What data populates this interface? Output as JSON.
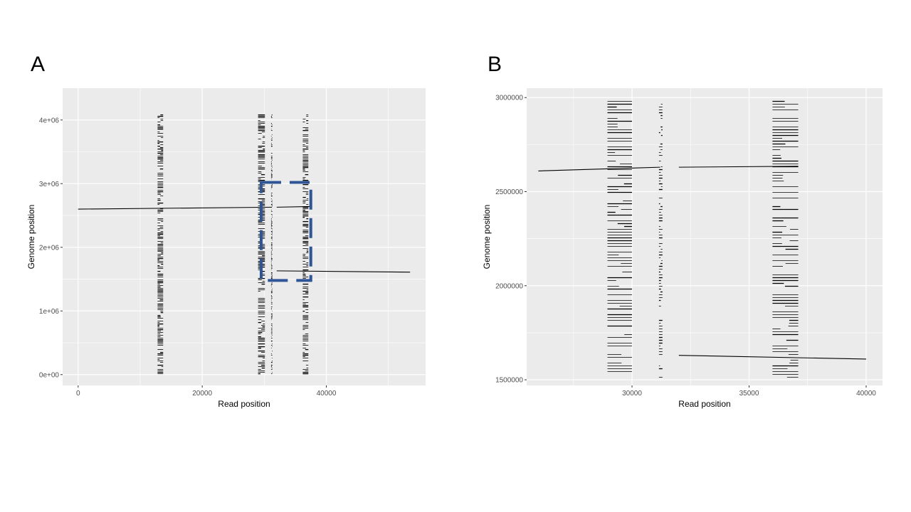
{
  "panels": {
    "a": {
      "letter": "A"
    },
    "b": {
      "letter": "B"
    }
  },
  "colors": {
    "panel_background": "#ebebeb",
    "grid": "#ffffff",
    "segment": "#000000",
    "zoom_box": "#2f5597"
  },
  "chart_data": [
    {
      "type": "line",
      "panel": "A",
      "xlabel": "Read position",
      "ylabel": "Genome position",
      "xlim": [
        -2500,
        56000
      ],
      "ylim": [
        -170000,
        4500000
      ],
      "xticks": [
        0,
        20000,
        40000
      ],
      "xtick_labels": [
        "0",
        "20000",
        "40000"
      ],
      "yticks": [
        0,
        1000000,
        2000000,
        3000000,
        4000000
      ],
      "ytick_labels": [
        "0e+00",
        "1e+06",
        "2e+06",
        "3e+06",
        "4e+06"
      ],
      "grid": true,
      "series": [
        {
          "x": [
            0,
            31200
          ],
          "y": [
            2600000,
            2630000
          ]
        },
        {
          "x": [
            32000,
            37300
          ],
          "y": [
            2630000,
            2640000
          ]
        },
        {
          "x": [
            32000,
            53500
          ],
          "y": [
            1630000,
            1610000
          ]
        }
      ],
      "alignment_columns": [
        {
          "x_range": [
            12800,
            13700
          ],
          "y_range": [
            0,
            4080000
          ]
        },
        {
          "x_range": [
            29000,
            30100
          ],
          "y_range": [
            0,
            4080000
          ]
        },
        {
          "x_range": [
            31100,
            31300
          ],
          "y_range": [
            0,
            4080000
          ]
        },
        {
          "x_range": [
            36200,
            37100
          ],
          "y_range": [
            0,
            4080000
          ]
        }
      ],
      "zoom_region": {
        "x": [
          29500,
          37500
        ],
        "y": [
          1480000,
          3020000
        ]
      }
    },
    {
      "type": "line",
      "panel": "B",
      "xlabel": "Read position",
      "ylabel": "Genome position",
      "xlim": [
        25500,
        40700
      ],
      "ylim": [
        1470000,
        3050000
      ],
      "xticks": [
        30000,
        35000,
        40000
      ],
      "xtick_labels": [
        "30000",
        "35000",
        "40000"
      ],
      "yticks": [
        1500000,
        2000000,
        2500000,
        3000000
      ],
      "ytick_labels": [
        "1500000",
        "2000000",
        "2500000",
        "3000000"
      ],
      "grid": true,
      "series": [
        {
          "x": [
            26000,
            31200
          ],
          "y": [
            2610000,
            2630000
          ]
        },
        {
          "x": [
            32000,
            37100
          ],
          "y": [
            2630000,
            2635000
          ]
        },
        {
          "x": [
            32000,
            40000
          ],
          "y": [
            1630000,
            1610000
          ]
        }
      ],
      "alignment_columns": [
        {
          "x_range": [
            28950,
            30000
          ],
          "y_range": [
            1500000,
            2980000
          ]
        },
        {
          "x_range": [
            31150,
            31300
          ],
          "y_range": [
            1500000,
            2980000
          ]
        },
        {
          "x_range": [
            36000,
            37100
          ],
          "y_range": [
            1500000,
            2980000
          ]
        }
      ]
    }
  ]
}
